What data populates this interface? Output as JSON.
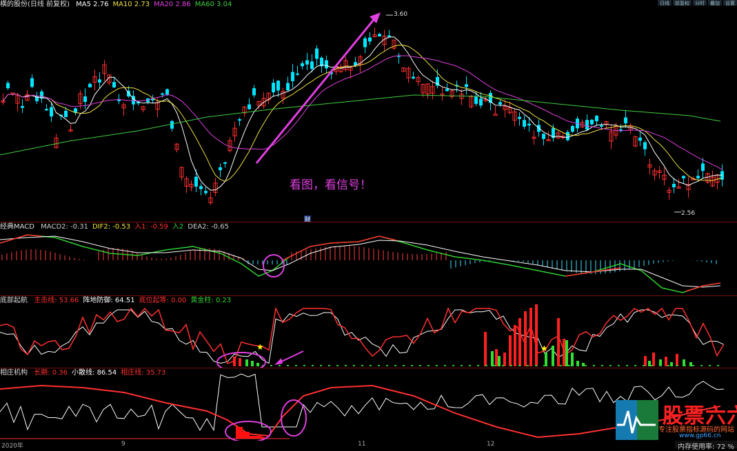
{
  "header": {
    "title": "横的股份(日线 前复权)",
    "ma": [
      {
        "label": "MA5",
        "value": "2.76",
        "color": "#ffffff"
      },
      {
        "label": "MA10",
        "value": "2.73",
        "color": "#f0e040"
      },
      {
        "label": "MA20",
        "value": "2.86",
        "color": "#e040e0"
      },
      {
        "label": "MA60",
        "value": "3.04",
        "color": "#40d040"
      }
    ],
    "high_label": "3.60",
    "low_label": "2.56",
    "annotation": "看图，看信号！",
    "fin_badge": "财"
  },
  "macd": {
    "name": "经典MACD",
    "items": [
      {
        "label": "MACD2:",
        "value": "-0.31",
        "color": "#cccccc"
      },
      {
        "label": "DIF2:",
        "value": "-0.53",
        "color": "#f0e040"
      },
      {
        "label": "入1:",
        "value": "-0.59",
        "color": "#ff3030"
      },
      {
        "label": "入2",
        "value": "",
        "color": "#30d030"
      },
      {
        "label": "DEA2:",
        "value": "-0.65",
        "color": "#cccccc"
      }
    ]
  },
  "bottom_signal": {
    "name": "底部起航",
    "items": [
      {
        "label": "主击线:",
        "value": "53.66",
        "color": "#ff3030"
      },
      {
        "label": "阵地防御:",
        "value": "64.51",
        "color": "#ffffff"
      },
      {
        "label": "底位起等:",
        "value": "0.00",
        "color": "#ff3030"
      },
      {
        "label": "黄金柱:",
        "value": "0.23",
        "color": "#30d030"
      }
    ]
  },
  "institution": {
    "name": "相庄机构",
    "items": [
      {
        "label": "长期:",
        "value": "0.36",
        "color": "#ff3030"
      },
      {
        "label": "小散线:",
        "value": "86.54",
        "color": "#ffffff"
      },
      {
        "label": "相庄线:",
        "value": "35.73",
        "color": "#ff3030"
      }
    ]
  },
  "x_axis": [
    "2020年",
    "9",
    "11",
    "12"
  ],
  "status": {
    "label": "内存使用率:",
    "value": "72",
    "unit": "%"
  },
  "watermark": {
    "brand": "股票六六",
    "slogan": "专注股票指标源码的网站",
    "url": "www.gp66.cn"
  },
  "top_buttons": [
    "日线",
    "前复权",
    "分时",
    "叠加",
    "设置"
  ],
  "colors": {
    "up": "#ff3030",
    "down": "#00e5ff",
    "ma5": "#ffffff",
    "ma10": "#f0e040",
    "ma20": "#e040e0",
    "ma60": "#40d040",
    "arrow": "#e040e0"
  }
}
